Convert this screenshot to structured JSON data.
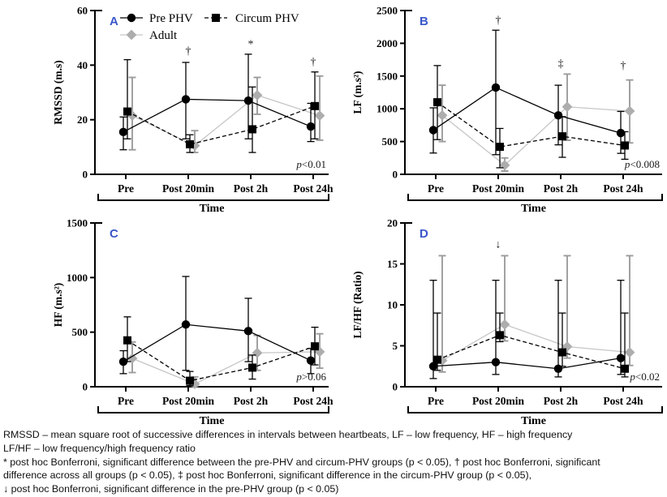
{
  "colors": {
    "black": "#000000",
    "adult_marker": "#adadad",
    "adult_line": "#c6c6c6",
    "adult_errbar": "#9c9c9c",
    "panel_letter": "#3a57c9"
  },
  "chart_data": [
    {
      "type": "line",
      "panel_label": "A",
      "ylabel": "RMSSD (m.s)",
      "xlabel": "Time",
      "ylim": [
        0,
        60
      ],
      "yticks": [
        0,
        20,
        40,
        60
      ],
      "categories": [
        "Pre",
        "Post 20min",
        "Post 2h",
        "Post 24h"
      ],
      "p_label": "p<0.01",
      "legend": {
        "position": "inside-top-left",
        "entries": [
          "Pre PHV",
          "Circum PHV",
          "Adult"
        ]
      },
      "annotations": [
        {
          "category_index": 1,
          "symbol": "†",
          "y": 44
        },
        {
          "category_index": 2,
          "symbol": "*",
          "y": 46.5
        },
        {
          "category_index": 3,
          "symbol": "†",
          "y": 40
        }
      ],
      "series": [
        {
          "name": "Pre PHV",
          "marker": "circle",
          "line_style": "solid",
          "color": "#000000",
          "values": [
            15.5,
            27.5,
            27,
            17.5
          ],
          "err_lo": [
            9,
            13,
            13,
            12
          ],
          "err_hi": [
            21,
            41,
            44,
            26
          ]
        },
        {
          "name": "Circum PHV",
          "marker": "square",
          "line_style": "dashed",
          "color": "#000000",
          "values": [
            23,
            11,
            16.5,
            25
          ],
          "err_lo": [
            13,
            8,
            8,
            13
          ],
          "err_hi": [
            42,
            14.5,
            32,
            37.5
          ]
        },
        {
          "name": "Adult",
          "marker": "diamond",
          "line_style": "solid",
          "color": "#adadad",
          "line_color": "#c6c6c6",
          "err_color": "#9c9c9c",
          "values": [
            21.5,
            10.5,
            29,
            21.5
          ],
          "err_lo": [
            9,
            8,
            22,
            12.5
          ],
          "err_hi": [
            35.5,
            16,
            35.5,
            36
          ]
        }
      ]
    },
    {
      "type": "line",
      "panel_label": "B",
      "ylabel": "LF (m.s²)",
      "xlabel": "Time",
      "ylim": [
        0,
        2500
      ],
      "yticks": [
        0,
        500,
        1000,
        1500,
        2000,
        2500
      ],
      "categories": [
        "Pre",
        "Post 20min",
        "Post 2h",
        "Post 24h"
      ],
      "p_label": "p<0.008",
      "annotations": [
        {
          "category_index": 1,
          "symbol": "†",
          "y": 2300
        },
        {
          "category_index": 2,
          "symbol": "‡",
          "y": 1640
        },
        {
          "category_index": 3,
          "symbol": "†",
          "y": 1610
        }
      ],
      "series": [
        {
          "name": "Pre PHV",
          "marker": "circle",
          "line_style": "solid",
          "color": "#000000",
          "values": [
            675,
            1325,
            900,
            630
          ],
          "err_lo": [
            325,
            300,
            450,
            320
          ],
          "err_hi": [
            1015,
            2200,
            1360,
            960
          ]
        },
        {
          "name": "Circum PHV",
          "marker": "square",
          "line_style": "dashed",
          "color": "#000000",
          "values": [
            1100,
            420,
            580,
            440
          ],
          "err_lo": [
            530,
            100,
            260,
            230
          ],
          "err_hi": [
            1660,
            700,
            880,
            650
          ]
        },
        {
          "name": "Adult",
          "marker": "diamond",
          "line_style": "solid",
          "color": "#adadad",
          "line_color": "#c6c6c6",
          "err_color": "#9c9c9c",
          "values": [
            900,
            140,
            1030,
            965
          ],
          "err_lo": [
            500,
            50,
            520,
            480
          ],
          "err_hi": [
            1360,
            250,
            1530,
            1440
          ]
        }
      ]
    },
    {
      "type": "line",
      "panel_label": "C",
      "ylabel": "HF (m.s²)",
      "xlabel": "Time",
      "ylim": [
        0,
        1500
      ],
      "yticks": [
        0,
        500,
        1000,
        1500
      ],
      "categories": [
        "Pre",
        "Post 20min",
        "Post 2h",
        "Post 24h"
      ],
      "p_label": "p>0.06",
      "annotations": [],
      "series": [
        {
          "name": "Pre PHV",
          "marker": "circle",
          "line_style": "solid",
          "color": "#000000",
          "values": [
            230,
            570,
            510,
            240
          ],
          "err_lo": [
            120,
            150,
            230,
            120
          ],
          "err_hi": [
            330,
            1010,
            810,
            350
          ]
        },
        {
          "name": "Circum PHV",
          "marker": "square",
          "line_style": "dashed",
          "color": "#000000",
          "values": [
            425,
            55,
            175,
            370
          ],
          "err_lo": [
            230,
            10,
            70,
            200
          ],
          "err_hi": [
            640,
            140,
            290,
            545
          ]
        },
        {
          "name": "Adult",
          "marker": "diamond",
          "line_style": "solid",
          "color": "#adadad",
          "line_color": "#c6c6c6",
          "err_color": "#9c9c9c",
          "values": [
            260,
            25,
            310,
            320
          ],
          "err_lo": [
            130,
            5,
            150,
            170
          ],
          "err_hi": [
            410,
            90,
            470,
            485
          ]
        }
      ]
    },
    {
      "type": "line",
      "panel_label": "D",
      "ylabel": "LF/HF (Ratio)",
      "xlabel": "Time",
      "ylim": [
        0,
        20
      ],
      "yticks": [
        0,
        5,
        10,
        15,
        20
      ],
      "categories": [
        "Pre",
        "Post 20min",
        "Post 2h",
        "Post 24h"
      ],
      "p_label": "p<0.02",
      "annotations": [
        {
          "category_index": 1,
          "symbol": "↓",
          "y": 17
        }
      ],
      "series": [
        {
          "name": "Pre PHV",
          "marker": "circle",
          "line_style": "solid",
          "color": "#000000",
          "values": [
            2.5,
            3.0,
            2.2,
            3.5
          ],
          "err_lo": [
            1,
            1.5,
            1.2,
            1.5
          ],
          "err_hi": [
            13,
            13,
            13,
            13
          ]
        },
        {
          "name": "Circum PHV",
          "marker": "square",
          "line_style": "dashed",
          "color": "#000000",
          "values": [
            3.3,
            6.3,
            4.2,
            2.2
          ],
          "err_lo": [
            2,
            5.5,
            2.5,
            1.2
          ],
          "err_hi": [
            9,
            9,
            9,
            9
          ]
        },
        {
          "name": "Adult",
          "marker": "diamond",
          "line_style": "solid",
          "color": "#adadad",
          "line_color": "#c6c6c6",
          "err_color": "#9c9c9c",
          "values": [
            3.2,
            7.6,
            4.9,
            4.2
          ],
          "err_lo": [
            1.8,
            5.6,
            3.5,
            2.6
          ],
          "err_hi": [
            16,
            16,
            16,
            16
          ]
        }
      ]
    }
  ],
  "caption": {
    "lines": [
      "RMSSD – mean square root of successive differences in intervals between heartbeats, LF – low frequency, HF – high frequency",
      "LF/HF – low frequency/high frequency ratio",
      "* post hoc Bonferroni, significant difference between the pre-PHV and circum-PHV groups (p < 0.05), † post hoc Bonferroni, significant",
      "difference across all groups (p < 0.05), ‡ post hoc Bonferroni, significant difference in the circum-PHV group (p < 0.05),",
      "↓ post hoc Bonferroni, significant difference in the pre-PHV group (p < 0.05)"
    ]
  }
}
